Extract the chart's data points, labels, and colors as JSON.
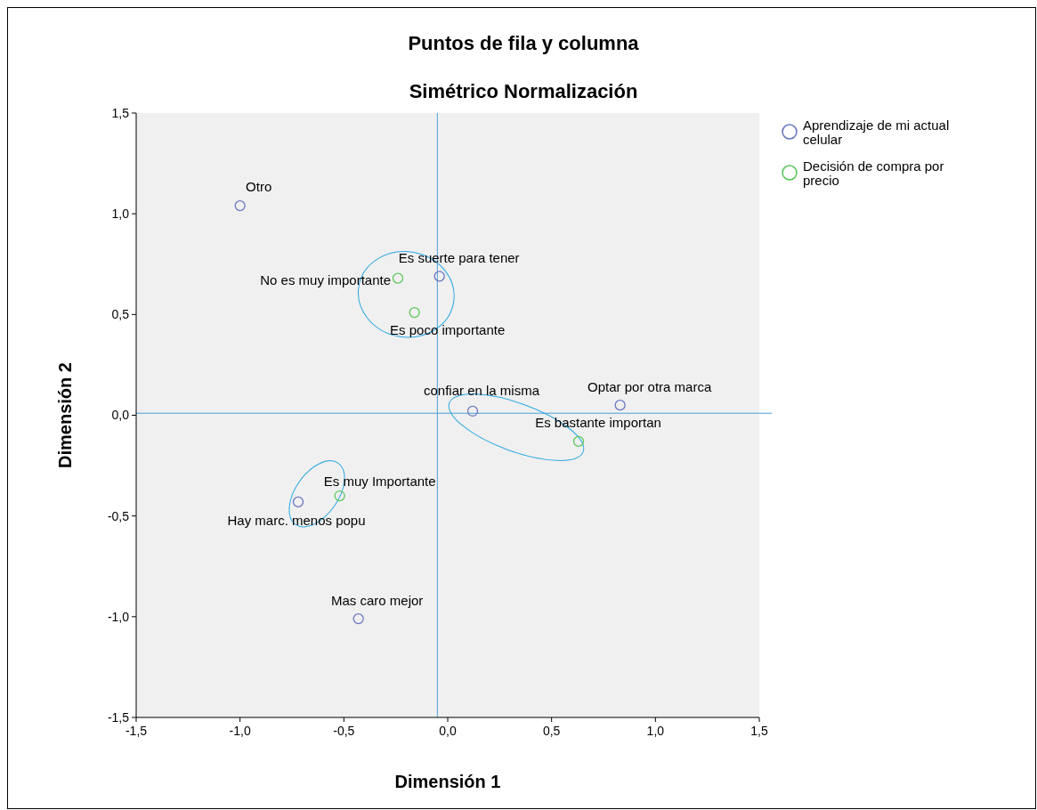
{
  "chart_data": {
    "type": "scatter",
    "title": "Puntos de fila y columna",
    "subtitle": "Simétrico Normalización",
    "xlabel": "Dimensión 1",
    "ylabel": "Dimensión 2",
    "xlim": [
      -1.5,
      1.5
    ],
    "ylim": [
      -1.5,
      1.5
    ],
    "xticks": [
      {
        "value": -1.5,
        "label": "-1,5"
      },
      {
        "value": -1,
        "label": "-1,0"
      },
      {
        "value": -0.5,
        "label": "-0,5"
      },
      {
        "value": 0,
        "label": "0,0"
      },
      {
        "value": 0.5,
        "label": "0,5"
      },
      {
        "value": 1,
        "label": "1,0"
      },
      {
        "value": 1.5,
        "label": "1,5"
      }
    ],
    "yticks": [
      {
        "value": -1.5,
        "label": "-1,5"
      },
      {
        "value": -1,
        "label": "-1,0"
      },
      {
        "value": -0.5,
        "label": "-0,5"
      },
      {
        "value": 0,
        "label": "0,0"
      },
      {
        "value": 0.5,
        "label": "0,5"
      },
      {
        "value": 1,
        "label": "1,0"
      },
      {
        "value": 1.5,
        "label": "1,5"
      }
    ],
    "series": [
      {
        "name": "Aprendizaje de mi actual celular",
        "color": "#6b78c0",
        "x": [
          -1.0,
          -0.04,
          0.12,
          0.83,
          -0.72,
          -0.43
        ],
        "values": [
          1.04,
          0.69,
          0.02,
          0.05,
          -0.43,
          -1.01
        ]
      },
      {
        "name": "Decisión de compra por precio",
        "color": "#5cc85c",
        "x": [
          -0.24,
          -0.16,
          0.63,
          -0.52
        ],
        "values": [
          0.68,
          0.51,
          -0.13,
          -0.4
        ]
      }
    ],
    "annotations": [
      {
        "text": "Otro",
        "x": -1.0,
        "y": 1.04
      },
      {
        "text": "Es suerte para tener",
        "x": -0.04,
        "y": 0.69
      },
      {
        "text": "confiar en la misma",
        "x": 0.12,
        "y": 0.02
      },
      {
        "text": "Optar por otra marca",
        "x": 0.83,
        "y": 0.05
      },
      {
        "text": "Hay marc. menos popu",
        "x": -0.72,
        "y": -0.43
      },
      {
        "text": "Mas caro mejor",
        "x": -0.43,
        "y": -1.01
      },
      {
        "text": "No es muy importante",
        "x": -0.24,
        "y": 0.68
      },
      {
        "text": "Es poco importante",
        "x": -0.16,
        "y": 0.51
      },
      {
        "text": "Es bastante importan",
        "x": 0.63,
        "y": -0.13
      },
      {
        "text": "Es muy Importante",
        "x": -0.52,
        "y": -0.4
      }
    ],
    "ref_lines": [
      {
        "axis": "x",
        "value": -0.05,
        "color": "#4a9fd8"
      },
      {
        "axis": "y",
        "value": 0.01,
        "color": "#4a9fd8"
      }
    ],
    "marker": "circle",
    "legend": "right",
    "grid": false
  }
}
